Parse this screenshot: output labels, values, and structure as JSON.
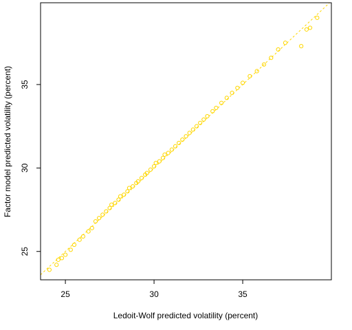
{
  "chart_data": {
    "type": "scatter",
    "title": "",
    "xlabel": "Ledoit-Wolf predicted volatility (percent)",
    "ylabel": "Factor model predicted volatility (percent)",
    "xlim": [
      23.6,
      40.0
    ],
    "ylim": [
      23.3,
      39.9
    ],
    "x_ticks": [
      25,
      30,
      35
    ],
    "y_ticks": [
      25,
      30,
      35
    ],
    "x_tick_labels": [
      "25",
      "30",
      "35"
    ],
    "y_tick_labels": [
      "25",
      "30",
      "35"
    ],
    "grid": false,
    "legend": "none",
    "point_color": "#FFD700",
    "reference_line": {
      "type": "identity",
      "slope": 1,
      "intercept": 0,
      "color": "#FFD700",
      "style": "dashed"
    },
    "series": [
      {
        "points": [
          [
            24.1,
            23.9
          ],
          [
            24.5,
            24.2
          ],
          [
            24.6,
            24.5
          ],
          [
            24.8,
            24.6
          ],
          [
            25.0,
            24.8
          ],
          [
            25.3,
            25.1
          ],
          [
            25.5,
            25.4
          ],
          [
            25.8,
            25.7
          ],
          [
            26.0,
            25.9
          ],
          [
            26.3,
            26.2
          ],
          [
            26.5,
            26.4
          ],
          [
            26.7,
            26.8
          ],
          [
            26.9,
            27.0
          ],
          [
            27.1,
            27.2
          ],
          [
            27.3,
            27.4
          ],
          [
            27.5,
            27.6
          ],
          [
            27.6,
            27.8
          ],
          [
            27.8,
            27.9
          ],
          [
            28.0,
            28.1
          ],
          [
            28.1,
            28.3
          ],
          [
            28.3,
            28.4
          ],
          [
            28.5,
            28.6
          ],
          [
            28.6,
            28.8
          ],
          [
            28.8,
            28.9
          ],
          [
            29.0,
            29.1
          ],
          [
            29.1,
            29.2
          ],
          [
            29.3,
            29.4
          ],
          [
            29.5,
            29.6
          ],
          [
            29.6,
            29.7
          ],
          [
            29.8,
            29.9
          ],
          [
            30.0,
            30.1
          ],
          [
            30.1,
            30.3
          ],
          [
            30.3,
            30.4
          ],
          [
            30.5,
            30.6
          ],
          [
            30.6,
            30.8
          ],
          [
            30.8,
            30.9
          ],
          [
            31.0,
            31.1
          ],
          [
            31.2,
            31.3
          ],
          [
            31.4,
            31.5
          ],
          [
            31.6,
            31.7
          ],
          [
            31.8,
            31.9
          ],
          [
            32.0,
            32.1
          ],
          [
            32.2,
            32.3
          ],
          [
            32.4,
            32.5
          ],
          [
            32.6,
            32.7
          ],
          [
            32.8,
            32.9
          ],
          [
            33.0,
            33.1
          ],
          [
            33.3,
            33.4
          ],
          [
            33.5,
            33.6
          ],
          [
            33.8,
            33.9
          ],
          [
            34.1,
            34.2
          ],
          [
            34.4,
            34.5
          ],
          [
            34.7,
            34.8
          ],
          [
            35.0,
            35.1
          ],
          [
            35.4,
            35.5
          ],
          [
            35.8,
            35.8
          ],
          [
            36.2,
            36.2
          ],
          [
            36.6,
            36.6
          ],
          [
            37.0,
            37.1
          ],
          [
            37.4,
            37.5
          ],
          [
            38.3,
            37.3
          ],
          [
            38.6,
            38.3
          ],
          [
            38.8,
            38.4
          ],
          [
            39.2,
            39.0
          ]
        ]
      }
    ]
  }
}
